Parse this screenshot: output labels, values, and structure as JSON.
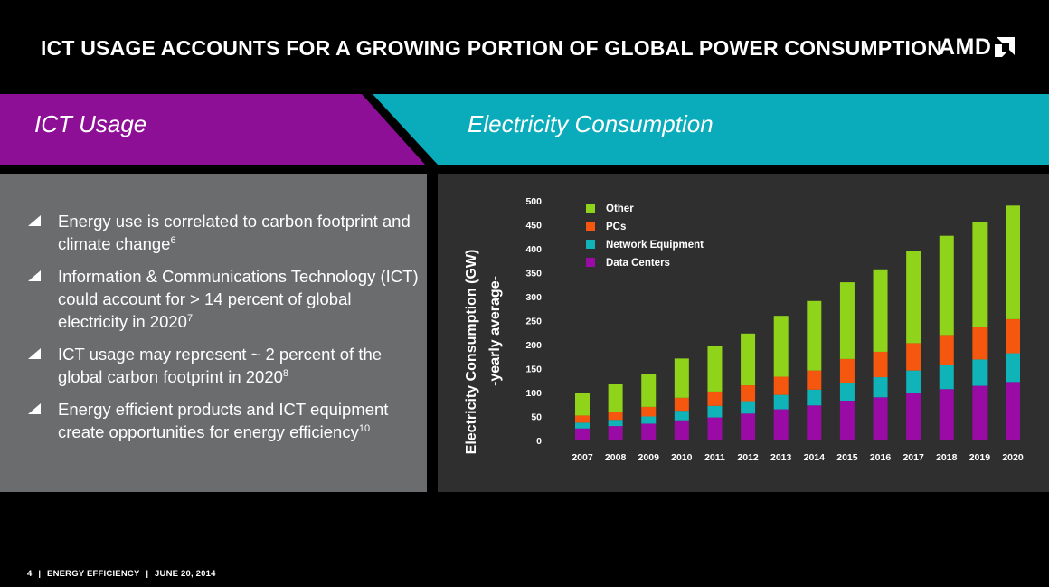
{
  "header": {
    "title": "ICT USAGE ACCOUNTS FOR A GROWING PORTION OF GLOBAL POWER CONSUMPTION",
    "logo_text": "AMD"
  },
  "colors": {
    "purple": "#8c0f95",
    "teal": "#0aacbb",
    "panel_gray": "#6b6c6d",
    "chart_bg": "#2f2f2f",
    "other": "#8fd41a",
    "pcs": "#f5570f",
    "network": "#10b3b8",
    "datacenters": "#9a0aa5"
  },
  "banner": {
    "left_label": "ICT Usage",
    "right_label": "Electricity Consumption"
  },
  "bullets": [
    {
      "text": "Energy use is correlated to carbon footprint and climate change",
      "ref": "6"
    },
    {
      "text": "Information & Communications Technology (ICT) could account for > 14 percent of global electricity in 2020",
      "ref": "7"
    },
    {
      "text": "ICT usage may represent ~ 2 percent of the global carbon footprint in 2020",
      "ref": "8"
    },
    {
      "text": "Energy efficient products and ICT equipment create opportunities for energy efficiency",
      "ref": "10"
    }
  ],
  "chart_data": {
    "type": "bar",
    "stacked": true,
    "title": "",
    "ylabel": "Electricity Consumption (GW)",
    "ylabel_sub": "-yearly average-",
    "xlabel": "",
    "ylim": [
      0,
      500
    ],
    "yticks": [
      0,
      50,
      100,
      150,
      200,
      250,
      300,
      350,
      400,
      450,
      500
    ],
    "grid": false,
    "legend_position": "top-left",
    "categories": [
      "2007",
      "2008",
      "2009",
      "2010",
      "2011",
      "2012",
      "2013",
      "2014",
      "2015",
      "2016",
      "2017",
      "2018",
      "2019",
      "2020"
    ],
    "series": [
      {
        "name": "Data Centers",
        "color": "#9a0aa5",
        "values": [
          25,
          30,
          35,
          42,
          48,
          56,
          65,
          73,
          83,
          90,
          100,
          107,
          114,
          122
        ]
      },
      {
        "name": "Network Equipment",
        "color": "#10b3b8",
        "values": [
          12,
          13,
          15,
          20,
          24,
          26,
          30,
          33,
          37,
          42,
          46,
          50,
          55,
          60
        ]
      },
      {
        "name": "PCs",
        "color": "#f5570f",
        "values": [
          15,
          17,
          20,
          27,
          30,
          33,
          38,
          40,
          50,
          53,
          57,
          63,
          67,
          71
        ]
      },
      {
        "name": "Other",
        "color": "#8fd41a",
        "values": [
          48,
          57,
          68,
          82,
          96,
          108,
          127,
          145,
          160,
          172,
          192,
          207,
          219,
          237
        ]
      }
    ],
    "legend_order": [
      "Other",
      "PCs",
      "Network Equipment",
      "Data Centers"
    ]
  },
  "footer": {
    "page": "4",
    "section": "ENERGY EFFICIENCY",
    "date": "JUNE 20, 2014",
    "sep": "|"
  }
}
